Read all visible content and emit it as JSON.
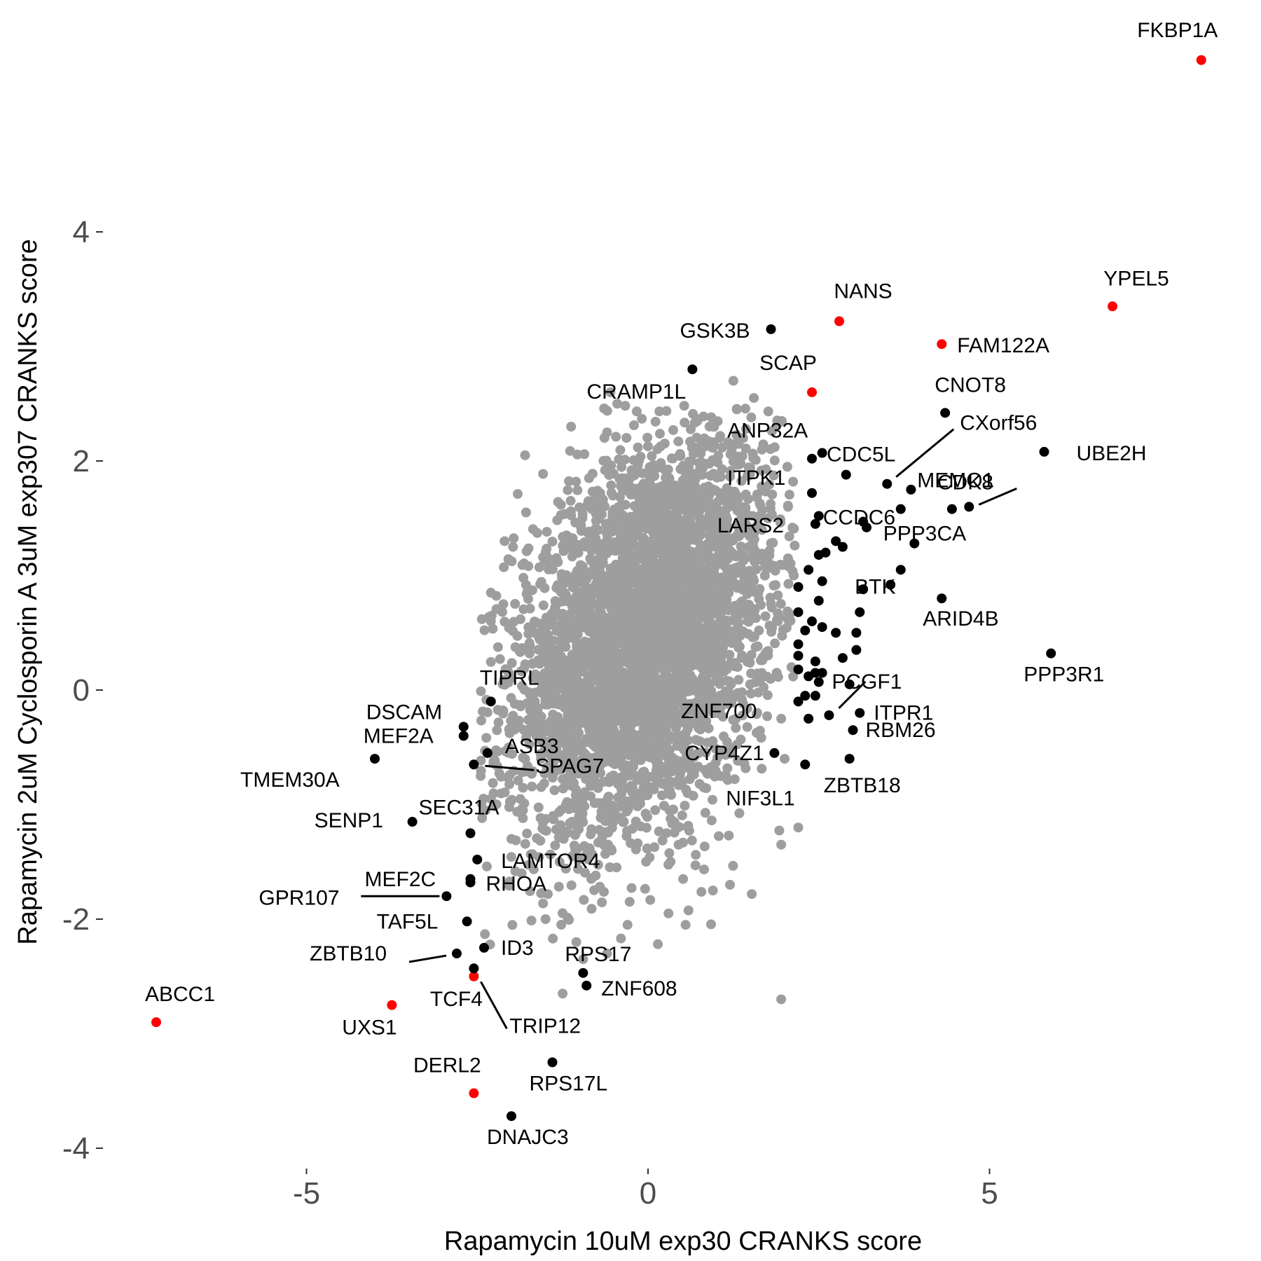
{
  "chart_data": {
    "type": "scatter",
    "xlabel": "Rapamycin 10uM exp30 CRANKS score",
    "ylabel": "Rapamycin 2uM Cyclosporin A 3uM exp307 CRANKS score",
    "xlim": [
      -7.5,
      9.2
    ],
    "ylim": [
      -4.3,
      5.8
    ],
    "xticks": [
      -5,
      0,
      5
    ],
    "yticks": [
      -4,
      -2,
      0,
      2,
      4
    ],
    "xtick_labels": [
      "-5",
      "0",
      "5"
    ],
    "ytick_labels": [
      "-4",
      "-2",
      "0",
      "2",
      "4"
    ],
    "grid": false,
    "legend": "none",
    "colors": {
      "background": "#ffffff",
      "highlight": "#ff0000",
      "labeled": "#000000",
      "background_points": "#9e9e9e",
      "tick_text": "#4d4d4d"
    },
    "background_cloud": {
      "center": [
        -0.05,
        0.45
      ],
      "sd_x": 0.95,
      "sd_y": 0.85,
      "correlation": 0.35,
      "count": 4200
    },
    "background_outliers": [
      {
        "x": -1.8,
        "y": 2.05
      },
      {
        "x": -0.45,
        "y": 2.5
      },
      {
        "x": -0.55,
        "y": 2.6
      },
      {
        "x": -0.6,
        "y": 2.25
      },
      {
        "x": 1.55,
        "y": 2.55
      },
      {
        "x": 1.3,
        "y": 2.45
      },
      {
        "x": 1.25,
        "y": 2.7
      },
      {
        "x": 0.9,
        "y": 2.3
      },
      {
        "x": 1.05,
        "y": 2.2
      },
      {
        "x": -2.1,
        "y": 1.3
      },
      {
        "x": -2.3,
        "y": 0.85
      },
      {
        "x": -2.3,
        "y": 0.6
      },
      {
        "x": -2.45,
        "y": -0.75
      },
      {
        "x": -2.3,
        "y": -0.95
      },
      {
        "x": -1.5,
        "y": -2.0
      },
      {
        "x": -1.05,
        "y": -2.2
      },
      {
        "x": -0.95,
        "y": -2.35
      },
      {
        "x": -1.25,
        "y": -2.65
      },
      {
        "x": -0.6,
        "y": -2.3
      },
      {
        "x": -0.3,
        "y": -2.05
      },
      {
        "x": 0.55,
        "y": -2.05
      },
      {
        "x": 0.95,
        "y": -1.75
      },
      {
        "x": 1.2,
        "y": -1.7
      },
      {
        "x": 1.95,
        "y": -1.35
      },
      {
        "x": 2.2,
        "y": -1.2
      },
      {
        "x": 1.95,
        "y": -2.7
      },
      {
        "x": 2.05,
        "y": 1.15
      },
      {
        "x": 2.05,
        "y": 1.6
      },
      {
        "x": 1.9,
        "y": 0.6
      },
      {
        "x": 2.1,
        "y": 0.2
      },
      {
        "x": 1.95,
        "y": -0.25
      },
      {
        "x": 2.0,
        "y": -0.6
      },
      {
        "x": -2.0,
        "y": -1.3
      },
      {
        "x": -1.85,
        "y": -1.6
      },
      {
        "x": 0.3,
        "y": -1.95
      }
    ],
    "series": [
      {
        "name": "highlighted",
        "color": "#ff0000",
        "points": [
          {
            "label": "FKBP1A",
            "x": 8.1,
            "y": 5.5
          },
          {
            "label": "YPEL5",
            "x": 6.8,
            "y": 3.35
          },
          {
            "label": "NANS",
            "x": 2.8,
            "y": 3.22
          },
          {
            "label": "FAM122A",
            "x": 4.3,
            "y": 3.02
          },
          {
            "label": "SCAP",
            "x": 2.4,
            "y": 2.6
          },
          {
            "label": "ABCC1",
            "x": -7.2,
            "y": -2.9
          },
          {
            "label": "UXS1",
            "x": -3.75,
            "y": -2.75
          },
          {
            "label": "TCF4",
            "x": -2.55,
            "y": -2.5
          },
          {
            "label": "DERL2",
            "x": -2.55,
            "y": -3.52
          }
        ]
      },
      {
        "name": "labeled",
        "color": "#000000",
        "points": [
          {
            "label": "GSK3B",
            "x": 1.8,
            "y": 3.15
          },
          {
            "label": "CRAMP1L",
            "x": 0.65,
            "y": 2.8
          },
          {
            "label": "CNOT8",
            "x": 4.35,
            "y": 2.42
          },
          {
            "label": "CXorf56",
            "x": 3.5,
            "y": 1.8
          },
          {
            "label": "UBE2H",
            "x": 5.8,
            "y": 2.08
          },
          {
            "label": "ANP32A",
            "x": 2.55,
            "y": 2.07
          },
          {
            "label": "CDC5L",
            "x": 2.4,
            "y": 2.02
          },
          {
            "label": "CDK8",
            "x": 4.45,
            "y": 1.58
          },
          {
            "label": "MEMO1",
            "x": 4.7,
            "y": 1.6
          },
          {
            "label": "ITPK1",
            "x": 2.4,
            "y": 1.72
          },
          {
            "label": "CCDC6",
            "x": 2.5,
            "y": 1.52
          },
          {
            "label": "LARS2",
            "x": 2.45,
            "y": 1.45
          },
          {
            "label": "PPP3CA",
            "x": 3.7,
            "y": 1.05
          },
          {
            "label": "BTK",
            "x": 3.55,
            "y": 0.92
          },
          {
            "label": "ARID4B",
            "x": 4.3,
            "y": 0.8
          },
          {
            "label": "PPP3R1",
            "x": 5.9,
            "y": 0.32
          },
          {
            "label": "PCGF1",
            "x": 2.65,
            "y": -0.22
          },
          {
            "label": "ITPR1",
            "x": 3.1,
            "y": -0.2
          },
          {
            "label": "ZNF700",
            "x": 2.35,
            "y": -0.25
          },
          {
            "label": "RBM26",
            "x": 3.0,
            "y": -0.35
          },
          {
            "label": "CYP4Z1",
            "x": 1.85,
            "y": -0.55
          },
          {
            "label": "ZBTB18",
            "x": 2.95,
            "y": -0.6
          },
          {
            "label": "NIF3L1",
            "x": 2.3,
            "y": -0.65
          },
          {
            "label": "TIPRL",
            "x": -2.3,
            "y": -0.1
          },
          {
            "label": "DSCAM",
            "x": -2.7,
            "y": -0.32
          },
          {
            "label": "MEF2A",
            "x": -2.7,
            "y": -0.4
          },
          {
            "label": "ASB3",
            "x": -2.35,
            "y": -0.55
          },
          {
            "label": "SPAG7",
            "x": -2.55,
            "y": -0.65
          },
          {
            "label": "TMEM30A",
            "x": -4.0,
            "y": -0.6
          },
          {
            "label": "SEC31A",
            "x": -2.6,
            "y": -1.25
          },
          {
            "label": "SENP1",
            "x": -3.45,
            "y": -1.15
          },
          {
            "label": "LAMTOR4",
            "x": -2.5,
            "y": -1.48
          },
          {
            "label": "MEF2C",
            "x": -2.6,
            "y": -1.65
          },
          {
            "label": "RHOA",
            "x": -2.6,
            "y": -1.68
          },
          {
            "label": "GPR107",
            "x": -2.95,
            "y": -1.8
          },
          {
            "label": "TAF5L",
            "x": -2.65,
            "y": -2.02
          },
          {
            "label": "ID3",
            "x": -2.4,
            "y": -2.25
          },
          {
            "label": "ZBTB10",
            "x": -2.8,
            "y": -2.3
          },
          {
            "label": "TRIP12",
            "x": -2.55,
            "y": -2.43
          },
          {
            "label": "RPS17",
            "x": -0.95,
            "y": -2.47
          },
          {
            "label": "ZNF608",
            "x": -0.9,
            "y": -2.58
          },
          {
            "label": "RPS17L",
            "x": -1.4,
            "y": -3.25
          },
          {
            "label": "DNAJC3",
            "x": -2.0,
            "y": -3.72
          }
        ]
      },
      {
        "name": "other",
        "color": "#000000",
        "points": [
          {
            "x": 2.9,
            "y": 1.88
          },
          {
            "x": 3.85,
            "y": 1.75
          },
          {
            "x": 3.7,
            "y": 1.58
          },
          {
            "x": 3.15,
            "y": 1.47
          },
          {
            "x": 3.2,
            "y": 1.42
          },
          {
            "x": 3.9,
            "y": 1.28
          },
          {
            "x": 2.85,
            "y": 1.25
          },
          {
            "x": 2.75,
            "y": 1.3
          },
          {
            "x": 2.5,
            "y": 1.18
          },
          {
            "x": 2.6,
            "y": 1.2
          },
          {
            "x": 2.35,
            "y": 1.05
          },
          {
            "x": 2.55,
            "y": 0.95
          },
          {
            "x": 2.2,
            "y": 0.9
          },
          {
            "x": 3.15,
            "y": 0.88
          },
          {
            "x": 2.5,
            "y": 0.78
          },
          {
            "x": 3.1,
            "y": 0.68
          },
          {
            "x": 2.2,
            "y": 0.68
          },
          {
            "x": 2.4,
            "y": 0.6
          },
          {
            "x": 2.3,
            "y": 0.52
          },
          {
            "x": 2.55,
            "y": 0.55
          },
          {
            "x": 2.75,
            "y": 0.5
          },
          {
            "x": 3.05,
            "y": 0.5
          },
          {
            "x": 2.2,
            "y": 0.4
          },
          {
            "x": 2.2,
            "y": 0.3
          },
          {
            "x": 2.45,
            "y": 0.25
          },
          {
            "x": 3.05,
            "y": 0.35
          },
          {
            "x": 2.85,
            "y": 0.28
          },
          {
            "x": 2.2,
            "y": 0.18
          },
          {
            "x": 2.45,
            "y": 0.15
          },
          {
            "x": 2.35,
            "y": 0.12
          },
          {
            "x": 2.55,
            "y": 0.15
          },
          {
            "x": 2.5,
            "y": 0.07
          },
          {
            "x": 2.95,
            "y": 0.05
          },
          {
            "x": 2.3,
            "y": -0.05
          },
          {
            "x": 2.2,
            "y": -0.1
          },
          {
            "x": 2.45,
            "y": -0.05
          }
        ]
      }
    ]
  }
}
